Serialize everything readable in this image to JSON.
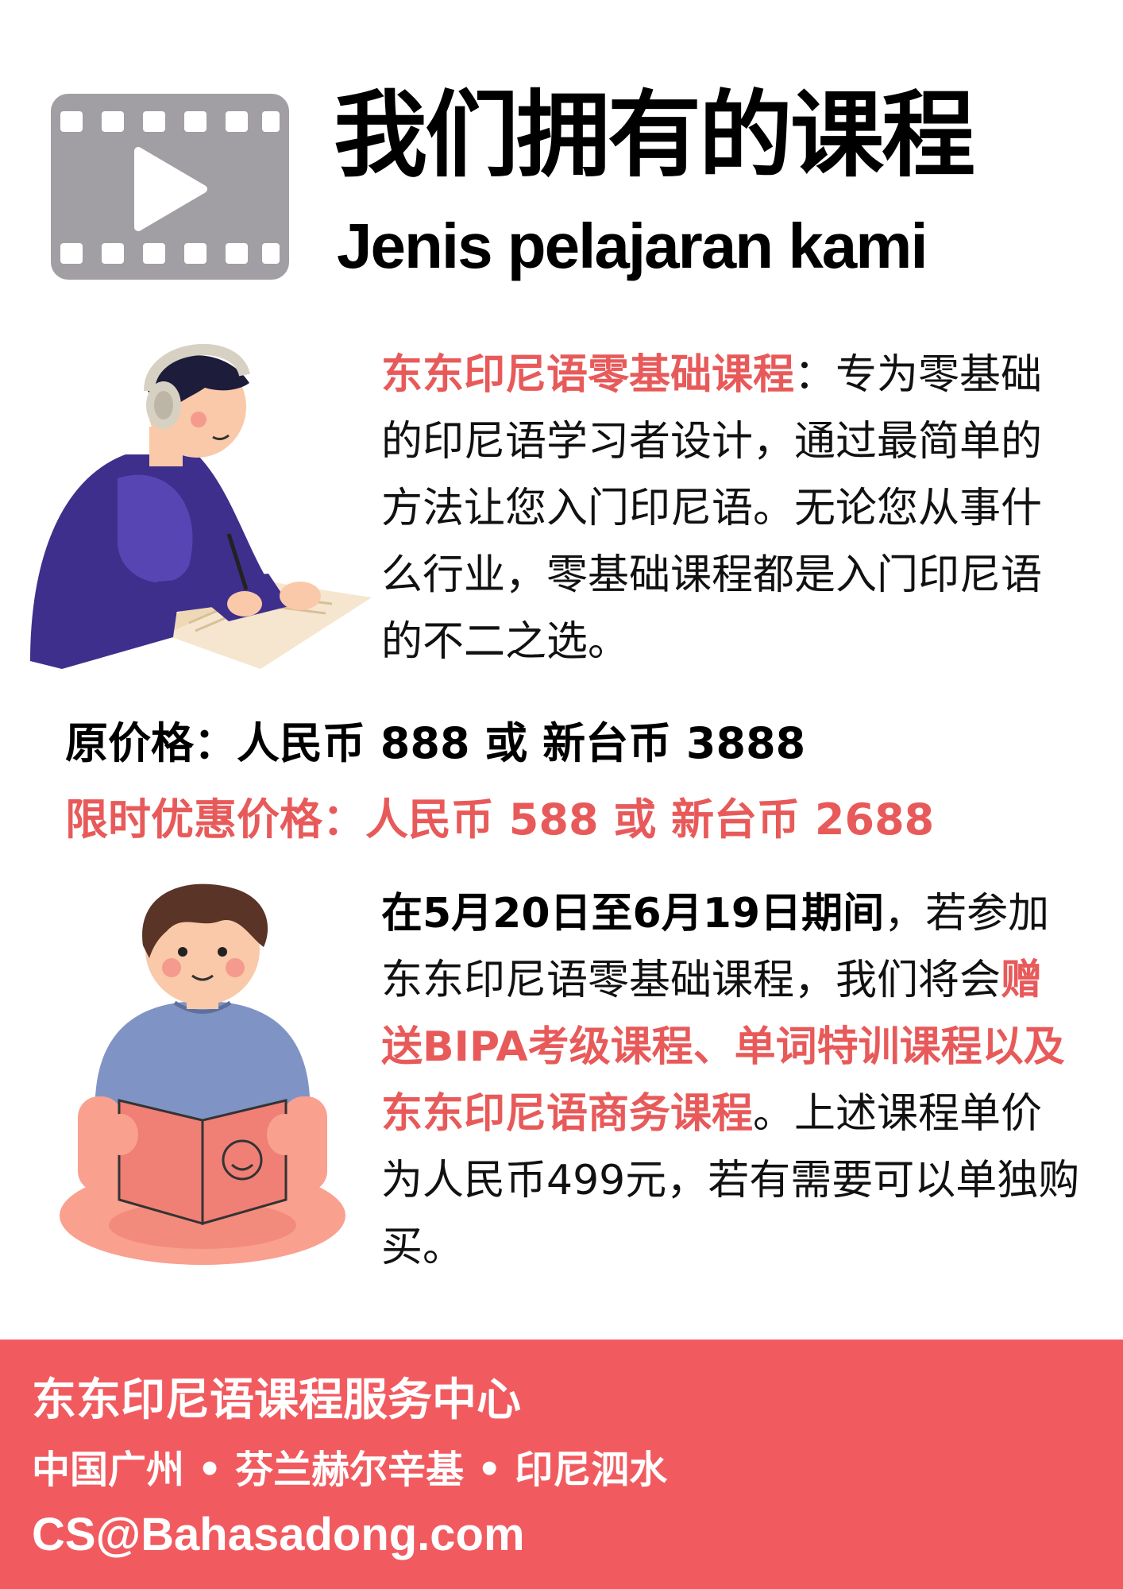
{
  "header": {
    "title_zh": "我们拥有的课程",
    "title_id": "Jenis pelajaran kami",
    "icon": "film-play-icon"
  },
  "course_intro": {
    "highlight": "东东印尼语零基础课程",
    "text": "：专为零基础的印尼语学习者设计，通过最简单的方法让您入门印尼语。无论您从事什么行业，零基础课程都是入门印尼语的不二之选。"
  },
  "prices": {
    "original": "原价格：人民币 888 或 新台币 3888",
    "sale": "限时优惠价格：人民币 588 或 新台币 2688"
  },
  "promotion": {
    "period": "在5月20日至6月19日期间",
    "text_1": "，若参加东东印尼语零基础课程，我们将会",
    "gift": "赠送BIPA考级课程、单词特训课程以及东东印尼语商务课程",
    "text_2": "。上述课程单价为人民币499元，若有需要可以单独购买。"
  },
  "footer": {
    "center_name": "东东印尼语课程服务中心",
    "locations": "中国广州 • 芬兰赫尔辛基 • 印尼泗水",
    "email": "CS@Bahasadong.com"
  },
  "colors": {
    "accent": "#e85a5a",
    "footer_bg": "#f15b60",
    "icon_gray": "#a19fa3",
    "text": "#111111"
  }
}
